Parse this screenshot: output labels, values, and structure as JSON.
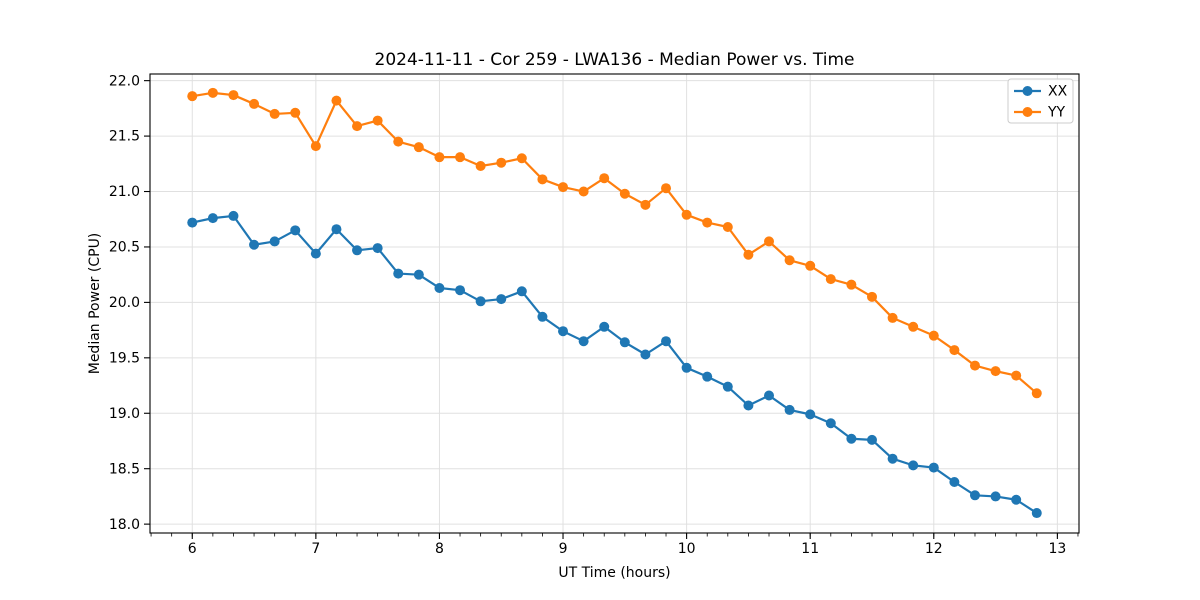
{
  "chart_data": {
    "type": "line",
    "title": "2024-11-11 - Cor 259 - LWA136 - Median Power vs. Time",
    "xlabel": "UT Time (hours)",
    "ylabel": "Median Power (CPU)",
    "xlim": [
      5.658,
      13.175
    ],
    "ylim": [
      17.92,
      22.06
    ],
    "x_tick_values": [
      6,
      7,
      8,
      9,
      10,
      11,
      12,
      13
    ],
    "x_tick_labels": [
      "6",
      "7",
      "8",
      "9",
      "10",
      "11",
      "12",
      "13"
    ],
    "x_minor_tick_step": 0.166667,
    "y_tick_values": [
      18.0,
      18.5,
      19.0,
      19.5,
      20.0,
      20.5,
      21.0,
      21.5,
      22.0
    ],
    "y_tick_labels": [
      "18.0",
      "18.5",
      "19.0",
      "19.5",
      "20.0",
      "20.5",
      "21.0",
      "21.5",
      "22.0"
    ],
    "grid": true,
    "grid_color": "#e0e0e0",
    "legend_position": "upper right",
    "x": [
      6.0,
      6.1667,
      6.3333,
      6.5,
      6.6667,
      6.8333,
      7.0,
      7.1667,
      7.3333,
      7.5,
      7.6667,
      7.8333,
      8.0,
      8.1667,
      8.3333,
      8.5,
      8.6667,
      8.8333,
      9.0,
      9.1667,
      9.3333,
      9.5,
      9.6667,
      9.8333,
      10.0,
      10.1667,
      10.3333,
      10.5,
      10.6667,
      10.8333,
      11.0,
      11.1667,
      11.3333,
      11.5,
      11.6667,
      11.8333,
      12.0,
      12.1667,
      12.3333,
      12.5,
      12.6667,
      12.8333
    ],
    "series": [
      {
        "name": "XX",
        "color": "#1f77b4",
        "values": [
          20.72,
          20.76,
          20.78,
          20.52,
          20.55,
          20.65,
          20.44,
          20.66,
          20.47,
          20.49,
          20.26,
          20.25,
          20.13,
          20.11,
          20.01,
          20.03,
          20.1,
          19.87,
          19.74,
          19.65,
          19.78,
          19.64,
          19.53,
          19.65,
          19.41,
          19.33,
          19.24,
          19.07,
          19.16,
          19.03,
          18.99,
          18.91,
          18.77,
          18.76,
          18.59,
          18.53,
          18.51,
          18.38,
          18.26,
          18.25,
          18.22,
          18.1
        ]
      },
      {
        "name": "YY",
        "color": "#ff7f0e",
        "values": [
          21.86,
          21.89,
          21.87,
          21.79,
          21.7,
          21.71,
          21.41,
          21.82,
          21.59,
          21.64,
          21.45,
          21.4,
          21.31,
          21.31,
          21.23,
          21.26,
          21.3,
          21.11,
          21.04,
          21.0,
          21.12,
          20.98,
          20.88,
          21.03,
          20.79,
          20.72,
          20.68,
          20.43,
          20.55,
          20.38,
          20.33,
          20.21,
          20.16,
          20.05,
          19.86,
          19.78,
          19.7,
          19.57,
          19.43,
          19.38,
          19.34,
          19.18
        ]
      }
    ]
  }
}
